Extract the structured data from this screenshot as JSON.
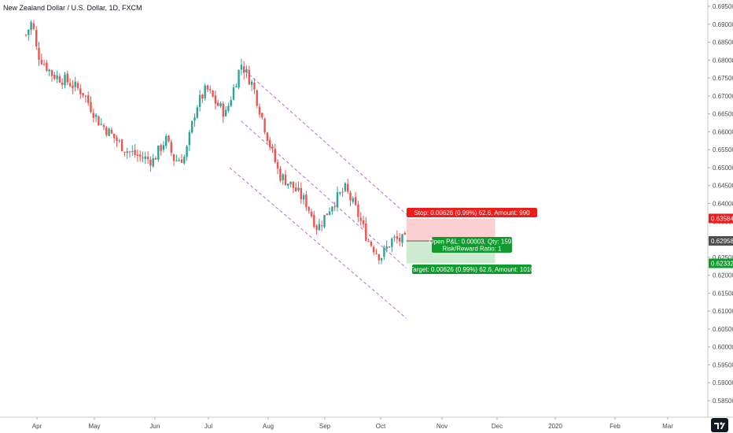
{
  "chart_data": {
    "type": "candlestick",
    "title": "New Zealand Dollar / U.S. Dollar, 1D, FXCM",
    "y_ticks": [
      "0.69500",
      "0.69000",
      "0.68500",
      "0.68000",
      "0.67500",
      "0.67000",
      "0.66500",
      "0.66000",
      "0.65500",
      "0.65000",
      "0.64500",
      "0.64000",
      "0.63500",
      "0.63000",
      "0.62500",
      "0.62000",
      "0.61500",
      "0.61000",
      "0.60500",
      "0.60000",
      "0.59500",
      "0.59000",
      "0.58500"
    ],
    "ylim": [
      0.5825,
      0.6975
    ],
    "x_labels": [
      "Apr",
      "May",
      "Jun",
      "Jul",
      "Aug",
      "Sep",
      "Oct",
      "Nov",
      "Dec",
      "2020",
      "Feb",
      "Mar"
    ],
    "price_anchors": [
      {
        "x": "Mar-18",
        "y": 0.687
      },
      {
        "x": "Mar-26",
        "y": 0.691
      },
      {
        "x": "Apr-01",
        "y": 0.682
      },
      {
        "x": "Apr-09",
        "y": 0.676
      },
      {
        "x": "Apr-17",
        "y": 0.674
      },
      {
        "x": "Apr-25",
        "y": 0.671
      },
      {
        "x": "May-03",
        "y": 0.663
      },
      {
        "x": "May-10",
        "y": 0.659
      },
      {
        "x": "May-17",
        "y": 0.655
      },
      {
        "x": "May-24",
        "y": 0.653
      },
      {
        "x": "May-31",
        "y": 0.652
      },
      {
        "x": "Jun-07",
        "y": 0.658
      },
      {
        "x": "Jun-12",
        "y": 0.652
      },
      {
        "x": "Jun-18",
        "y": 0.653
      },
      {
        "x": "Jun-24",
        "y": 0.667
      },
      {
        "x": "Jun-30",
        "y": 0.672
      },
      {
        "x": "Jul-05",
        "y": 0.668
      },
      {
        "x": "Jul-10",
        "y": 0.665
      },
      {
        "x": "Jul-18",
        "y": 0.679
      },
      {
        "x": "Jul-24",
        "y": 0.673
      },
      {
        "x": "Aug-01",
        "y": 0.658
      },
      {
        "x": "Aug-07",
        "y": 0.648
      },
      {
        "x": "Aug-14",
        "y": 0.645
      },
      {
        "x": "Aug-22",
        "y": 0.64
      },
      {
        "x": "Aug-28",
        "y": 0.633
      },
      {
        "x": "Sep-05",
        "y": 0.64
      },
      {
        "x": "Sep-12",
        "y": 0.644
      },
      {
        "x": "Sep-18",
        "y": 0.638
      },
      {
        "x": "Sep-24",
        "y": 0.63
      },
      {
        "x": "Oct-01",
        "y": 0.625
      },
      {
        "x": "Oct-07",
        "y": 0.63
      },
      {
        "x": "Oct-14",
        "y": 0.6296
      }
    ],
    "channel_lines": [
      {
        "name": "upper",
        "from": {
          "x": "Jul-20",
          "y": 0.677
        },
        "to": {
          "x": "Oct-14",
          "y": 0.637
        }
      },
      {
        "name": "middle",
        "from": {
          "x": "Jul-18",
          "y": 0.663
        },
        "to": {
          "x": "Oct-14",
          "y": 0.622
        }
      },
      {
        "name": "lower",
        "from": {
          "x": "Jul-12",
          "y": 0.65
        },
        "to": {
          "x": "Oct-14",
          "y": 0.608
        }
      }
    ],
    "position": {
      "type": "short",
      "entry": 0.62958,
      "stop": 0.63584,
      "target": 0.62332,
      "start": "Oct-14",
      "end": "Nov-30"
    },
    "labels": {
      "stop": "Stop: 0.00626 (0.99%) 62.6, Amount: 990",
      "pnl": "Open P&L: 0.00003, Qty: 1597",
      "ratio": "Risk/Reward Ratio: 1",
      "target": "Target: 0.00626 (0.99%) 62.6, Amount: 1010"
    },
    "price_badges": [
      {
        "value": "0.63584",
        "color": "#ef1c1c"
      },
      {
        "value": "0.62958",
        "color": "#4d4d4d"
      },
      {
        "value": "0.62332",
        "color": "#0f9b2e"
      }
    ],
    "colors": {
      "up": "#26a69a",
      "down": "#ef5350",
      "channel": "#b46ed8",
      "stop_zone": "#fbd0d0",
      "target_zone": "#cdebd0",
      "stop_label": "#ef1c1c",
      "target_label": "#0f9b2e"
    },
    "grid": false,
    "logo_icon": "tradingview-logo-icon"
  }
}
